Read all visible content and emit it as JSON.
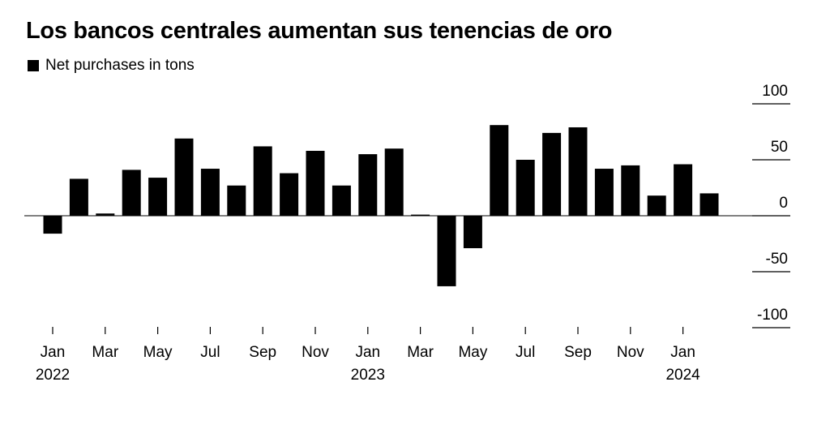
{
  "chart_data": {
    "type": "bar",
    "title": "Los bancos centrales aumentan sus tenencias de oro",
    "legend": [
      {
        "name": "Net purchases in tons",
        "color": "#000000"
      }
    ],
    "legend_placement": "top-left",
    "categories": [
      "Jan 2022",
      "Feb 2022",
      "Mar 2022",
      "Apr 2022",
      "May 2022",
      "Jun 2022",
      "Jul 2022",
      "Aug 2022",
      "Sep 2022",
      "Oct 2022",
      "Nov 2022",
      "Dec 2022",
      "Jan 2023",
      "Feb 2023",
      "Mar 2023",
      "Apr 2023",
      "May 2023",
      "Jun 2023",
      "Jul 2023",
      "Aug 2023",
      "Sep 2023",
      "Oct 2023",
      "Nov 2023",
      "Dec 2023",
      "Jan 2024",
      "Feb 2024"
    ],
    "series": [
      {
        "name": "Net purchases in tons",
        "values": [
          -16,
          33,
          2,
          41,
          34,
          69,
          42,
          27,
          62,
          38,
          58,
          27,
          55,
          60,
          1,
          -63,
          -29,
          81,
          50,
          74,
          79,
          42,
          45,
          18,
          46,
          20
        ]
      }
    ],
    "ylim": [
      -100,
      100
    ],
    "yticks": [
      100,
      50,
      0,
      -50,
      -100
    ],
    "ytick_labels": [
      "100",
      "50",
      "0",
      "-50",
      "-100"
    ],
    "xtick_labels": [
      {
        "label": "Jan",
        "year": "2022"
      },
      {
        "label": "Mar",
        "year": ""
      },
      {
        "label": "May",
        "year": ""
      },
      {
        "label": "Jul",
        "year": ""
      },
      {
        "label": "Sep",
        "year": ""
      },
      {
        "label": "Nov",
        "year": ""
      },
      {
        "label": "Jan",
        "year": "2023"
      },
      {
        "label": "Mar",
        "year": ""
      },
      {
        "label": "May",
        "year": ""
      },
      {
        "label": "Jul",
        "year": ""
      },
      {
        "label": "Sep",
        "year": ""
      },
      {
        "label": "Nov",
        "year": ""
      },
      {
        "label": "Jan",
        "year": "2024"
      }
    ],
    "grid": false,
    "bar_color": "#000000"
  }
}
